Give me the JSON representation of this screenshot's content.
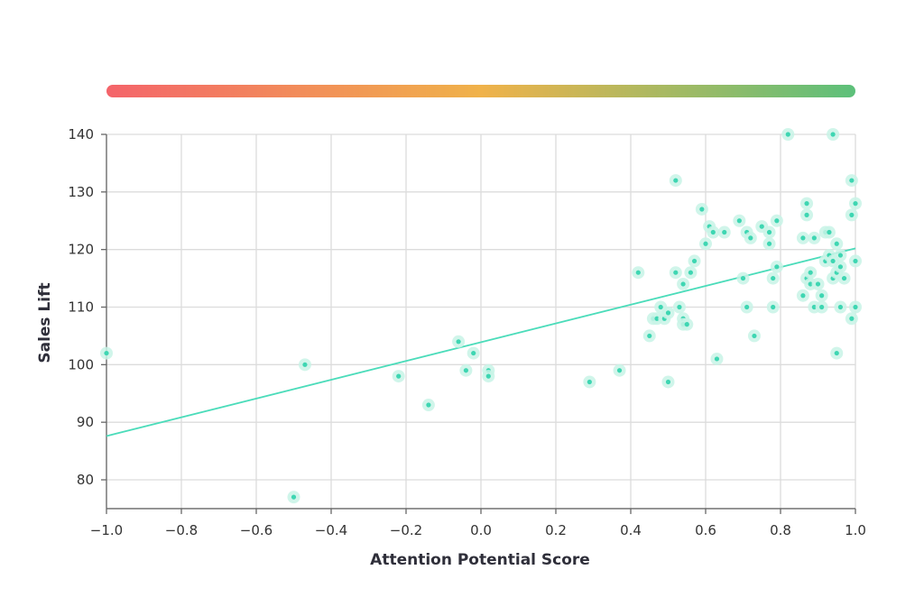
{
  "chart_data": {
    "type": "scatter",
    "xlabel": "Attention Potential Score",
    "ylabel": "Sales Lift",
    "xlim": [
      -1.0,
      1.0
    ],
    "ylim": [
      75,
      140
    ],
    "x_ticks": [
      "−1.0",
      "−0.8",
      "−0.6",
      "−0.4",
      "−0.2",
      "0.0",
      "0.2",
      "0.4",
      "0.6",
      "0.8",
      "1.0"
    ],
    "x_tick_values": [
      -1.0,
      -0.8,
      -0.6,
      -0.4,
      -0.2,
      0.0,
      0.2,
      0.4,
      0.6,
      0.8,
      1.0
    ],
    "y_ticks": [
      "80",
      "90",
      "100",
      "110",
      "120",
      "130",
      "140"
    ],
    "y_tick_values": [
      80,
      90,
      100,
      110,
      120,
      130,
      140
    ],
    "grid": true,
    "colors": {
      "point": "#3ed6b2",
      "point_halo": "#c8f3e6",
      "trend": "#4bdcba",
      "gradient_start": "#f4646a",
      "gradient_mid": "#f0b24a",
      "gradient_end": "#5cc07a"
    },
    "points": [
      {
        "x": -1.0,
        "y": 102
      },
      {
        "x": -0.5,
        "y": 77
      },
      {
        "x": -0.47,
        "y": 100
      },
      {
        "x": -0.22,
        "y": 98
      },
      {
        "x": -0.14,
        "y": 93
      },
      {
        "x": -0.06,
        "y": 104
      },
      {
        "x": -0.04,
        "y": 99
      },
      {
        "x": -0.02,
        "y": 102
      },
      {
        "x": 0.02,
        "y": 99
      },
      {
        "x": 0.02,
        "y": 98
      },
      {
        "x": 0.29,
        "y": 97
      },
      {
        "x": 0.37,
        "y": 99
      },
      {
        "x": 0.42,
        "y": 116
      },
      {
        "x": 0.45,
        "y": 105
      },
      {
        "x": 0.46,
        "y": 108
      },
      {
        "x": 0.47,
        "y": 108
      },
      {
        "x": 0.48,
        "y": 110
      },
      {
        "x": 0.49,
        "y": 108
      },
      {
        "x": 0.5,
        "y": 109
      },
      {
        "x": 0.5,
        "y": 97
      },
      {
        "x": 0.52,
        "y": 132
      },
      {
        "x": 0.52,
        "y": 116
      },
      {
        "x": 0.53,
        "y": 110
      },
      {
        "x": 0.54,
        "y": 114
      },
      {
        "x": 0.54,
        "y": 108
      },
      {
        "x": 0.54,
        "y": 107
      },
      {
        "x": 0.55,
        "y": 107
      },
      {
        "x": 0.56,
        "y": 116
      },
      {
        "x": 0.57,
        "y": 118
      },
      {
        "x": 0.59,
        "y": 127
      },
      {
        "x": 0.6,
        "y": 121
      },
      {
        "x": 0.61,
        "y": 124
      },
      {
        "x": 0.62,
        "y": 123
      },
      {
        "x": 0.63,
        "y": 101
      },
      {
        "x": 0.65,
        "y": 123
      },
      {
        "x": 0.69,
        "y": 125
      },
      {
        "x": 0.7,
        "y": 115
      },
      {
        "x": 0.71,
        "y": 123
      },
      {
        "x": 0.71,
        "y": 110
      },
      {
        "x": 0.72,
        "y": 122
      },
      {
        "x": 0.73,
        "y": 105
      },
      {
        "x": 0.75,
        "y": 124
      },
      {
        "x": 0.77,
        "y": 121
      },
      {
        "x": 0.77,
        "y": 123
      },
      {
        "x": 0.78,
        "y": 110
      },
      {
        "x": 0.78,
        "y": 115
      },
      {
        "x": 0.79,
        "y": 125
      },
      {
        "x": 0.79,
        "y": 117
      },
      {
        "x": 0.82,
        "y": 140
      },
      {
        "x": 0.86,
        "y": 122
      },
      {
        "x": 0.86,
        "y": 112
      },
      {
        "x": 0.87,
        "y": 128
      },
      {
        "x": 0.87,
        "y": 126
      },
      {
        "x": 0.87,
        "y": 115
      },
      {
        "x": 0.88,
        "y": 116
      },
      {
        "x": 0.88,
        "y": 114
      },
      {
        "x": 0.89,
        "y": 122
      },
      {
        "x": 0.89,
        "y": 110
      },
      {
        "x": 0.9,
        "y": 114
      },
      {
        "x": 0.91,
        "y": 112
      },
      {
        "x": 0.91,
        "y": 110
      },
      {
        "x": 0.92,
        "y": 118
      },
      {
        "x": 0.92,
        "y": 123
      },
      {
        "x": 0.93,
        "y": 119
      },
      {
        "x": 0.93,
        "y": 123
      },
      {
        "x": 0.94,
        "y": 140
      },
      {
        "x": 0.94,
        "y": 118
      },
      {
        "x": 0.94,
        "y": 115
      },
      {
        "x": 0.95,
        "y": 121
      },
      {
        "x": 0.95,
        "y": 116
      },
      {
        "x": 0.95,
        "y": 102
      },
      {
        "x": 0.96,
        "y": 119
      },
      {
        "x": 0.96,
        "y": 117
      },
      {
        "x": 0.96,
        "y": 110
      },
      {
        "x": 0.97,
        "y": 115
      },
      {
        "x": 0.99,
        "y": 132
      },
      {
        "x": 0.99,
        "y": 126
      },
      {
        "x": 0.99,
        "y": 108
      },
      {
        "x": 1.0,
        "y": 128
      },
      {
        "x": 1.0,
        "y": 118
      },
      {
        "x": 1.0,
        "y": 110
      }
    ],
    "trendline": [
      {
        "x": -1.0,
        "y": 87.6
      },
      {
        "x": 1.0,
        "y": 120.2
      }
    ]
  }
}
